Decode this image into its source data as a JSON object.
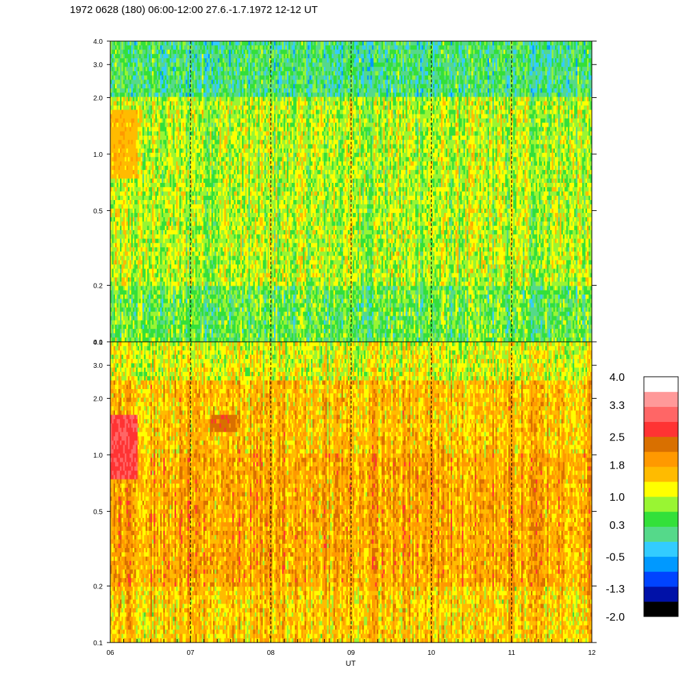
{
  "title": "1972 0628 (180) 06:00-12:00 27.6.-1.7.1972  12-12 UT",
  "colors": {
    "background": "#ffffff",
    "divider": "#000000",
    "day_lines": "#000000"
  },
  "chart_data": [
    {
      "type": "heatmap",
      "panel": "top",
      "x_range": [
        "06",
        "12"
      ],
      "y_scale": "log",
      "y_range": [
        0.1,
        4.0
      ],
      "y_ticks": [
        "0.1",
        "0.2",
        "0.5",
        "1.0",
        "2.0",
        "3.0",
        "4.0"
      ],
      "y_tick_values": [
        0.1,
        0.2,
        0.5,
        1.0,
        2.0,
        3.0,
        4.0
      ],
      "dominant_level_by_height": [
        {
          "y_max": 0.2,
          "level": 0.5
        },
        {
          "y_max": 0.7,
          "level": 0.9
        },
        {
          "y_max": 2.0,
          "level": 0.9
        },
        {
          "y_max": 4.0,
          "level": 0.2
        }
      ],
      "features": [
        {
          "x_start": "06:00",
          "x_end": "06:20",
          "y_min": 0.75,
          "y_max": 1.7,
          "level": 1.6
        }
      ]
    },
    {
      "type": "heatmap",
      "panel": "bottom",
      "x_range": [
        "06",
        "12"
      ],
      "y_scale": "log",
      "y_range": [
        0.1,
        4.0
      ],
      "y_ticks": [
        "0.1",
        "0.2",
        "0.5",
        "1.0",
        "2.0",
        "3.0",
        "4.0"
      ],
      "y_tick_values": [
        0.1,
        0.2,
        0.5,
        1.0,
        2.0,
        3.0,
        4.0
      ],
      "dominant_level_by_height": [
        {
          "y_max": 0.2,
          "level": 1.5
        },
        {
          "y_max": 1.0,
          "level": 1.8
        },
        {
          "y_max": 2.5,
          "level": 1.6
        },
        {
          "y_max": 4.0,
          "level": 1.1
        }
      ],
      "features": [
        {
          "x_start": "06:00",
          "x_end": "06:20",
          "y_min": 0.75,
          "y_max": 1.6,
          "level": 2.8
        },
        {
          "x_start": "07:15",
          "x_end": "07:35",
          "y_min": 1.3,
          "y_max": 1.6,
          "level": 2.3
        }
      ]
    }
  ],
  "x_axis": {
    "label": "UT",
    "ticks": [
      "06",
      "07",
      "08",
      "09",
      "10",
      "11",
      "12"
    ],
    "day_boundaries_hours": [
      7,
      8,
      9,
      10,
      11
    ]
  },
  "colorbar": {
    "tick_labels": [
      "4.0",
      "3.3",
      "2.5",
      "1.8",
      "1.0",
      "0.3",
      "-0.5",
      "-1.3",
      "-2.0"
    ],
    "tick_values": [
      4.0,
      3.3,
      2.5,
      1.8,
      1.0,
      0.3,
      -0.5,
      -1.3,
      -2.0
    ],
    "range": [
      -2.0,
      4.0
    ],
    "levels_colors_bottom_to_top": [
      "#000000",
      "#0011a8",
      "#0044ff",
      "#0099ff",
      "#33ccff",
      "#55d98a",
      "#33e03a",
      "#99f533",
      "#ffff00",
      "#ffbb00",
      "#ff9900",
      "#d97000",
      "#ff3333",
      "#ff6666",
      "#ff9999",
      "#ffffff"
    ]
  }
}
